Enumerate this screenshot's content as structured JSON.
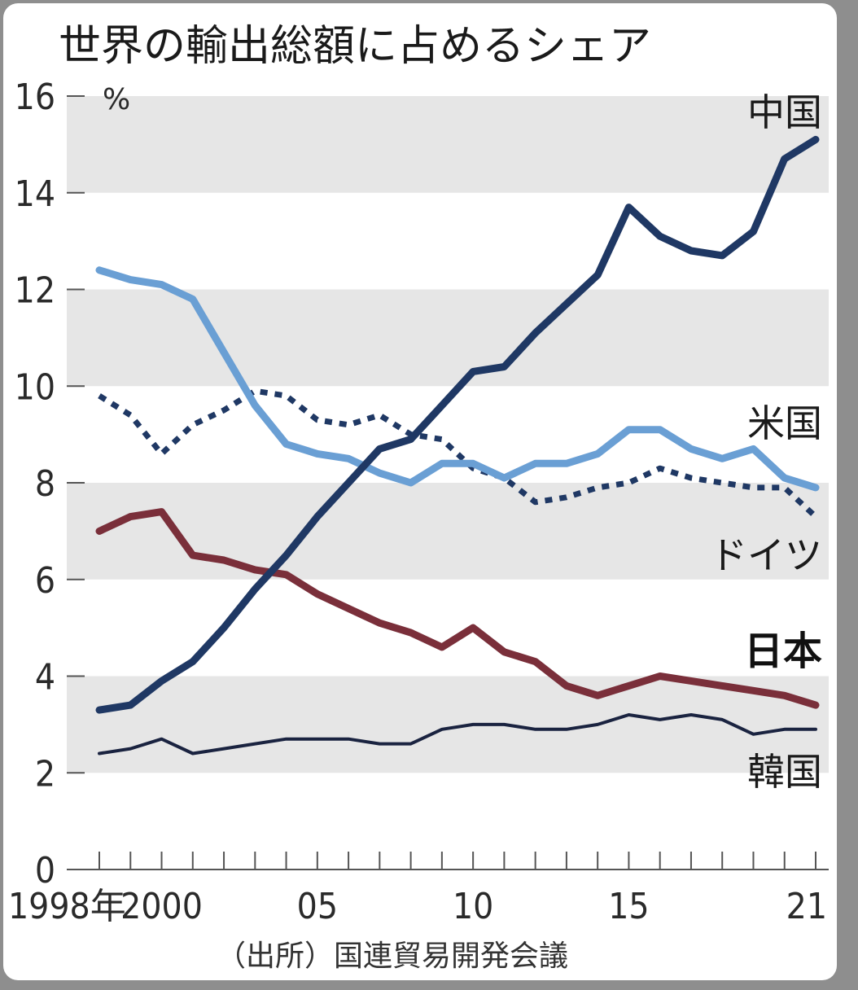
{
  "chart_data": {
    "type": "line",
    "title": "世界の輸出総額に占めるシェア",
    "ylabel": "%",
    "ylim": [
      0,
      16
    ],
    "yticks": [
      0,
      2,
      4,
      6,
      8,
      10,
      12,
      14,
      16
    ],
    "xlim": [
      1998,
      2021
    ],
    "x": [
      1998,
      1999,
      2000,
      2001,
      2002,
      2003,
      2004,
      2005,
      2006,
      2007,
      2008,
      2009,
      2010,
      2011,
      2012,
      2013,
      2014,
      2015,
      2016,
      2017,
      2018,
      2019,
      2020,
      2021
    ],
    "xticks": [
      {
        "x": 1998,
        "label": "1998年"
      },
      {
        "x": 2000,
        "label": "2000"
      },
      {
        "x": 2005,
        "label": "05"
      },
      {
        "x": 2010,
        "label": "10"
      },
      {
        "x": 2015,
        "label": "15"
      },
      {
        "x": 2021,
        "label": "21"
      }
    ],
    "series": [
      {
        "name": "中国",
        "color": "#1f3864",
        "style": "solid",
        "values": [
          3.3,
          3.4,
          3.9,
          4.3,
          5.0,
          5.8,
          6.5,
          7.3,
          8.0,
          8.7,
          8.9,
          9.6,
          10.3,
          10.4,
          11.1,
          11.7,
          12.3,
          13.7,
          13.1,
          12.8,
          12.7,
          13.2,
          14.7,
          15.1
        ]
      },
      {
        "name": "米国",
        "color": "#6a9fd4",
        "style": "solid",
        "values": [
          12.4,
          12.2,
          12.1,
          11.8,
          10.7,
          9.6,
          8.8,
          8.6,
          8.5,
          8.2,
          8.0,
          8.4,
          8.4,
          8.1,
          8.4,
          8.4,
          8.6,
          9.1,
          9.1,
          8.7,
          8.5,
          8.7,
          8.1,
          7.9
        ]
      },
      {
        "name": "ドイツ",
        "color": "#1f3864",
        "style": "dotted",
        "values": [
          9.8,
          9.4,
          8.6,
          9.2,
          9.5,
          9.9,
          9.8,
          9.3,
          9.2,
          9.4,
          9.0,
          8.9,
          8.3,
          8.1,
          7.6,
          7.7,
          7.9,
          8.0,
          8.3,
          8.1,
          8.0,
          7.9,
          7.9,
          7.3
        ]
      },
      {
        "name": "日本",
        "color": "#7a2f3a",
        "style": "solid",
        "values": [
          7.0,
          7.3,
          7.4,
          6.5,
          6.4,
          6.2,
          6.1,
          5.7,
          5.4,
          5.1,
          4.9,
          4.6,
          5.0,
          4.5,
          4.3,
          3.8,
          3.6,
          3.8,
          4.0,
          3.9,
          3.8,
          3.7,
          3.6,
          3.4
        ]
      },
      {
        "name": "韓国",
        "color": "#1a2340",
        "style": "solid-thin",
        "values": [
          2.4,
          2.5,
          2.7,
          2.4,
          2.5,
          2.6,
          2.7,
          2.7,
          2.7,
          2.6,
          2.6,
          2.9,
          3.0,
          3.0,
          2.9,
          2.9,
          3.0,
          3.2,
          3.1,
          3.2,
          3.1,
          2.8,
          2.9,
          2.9
        ]
      }
    ],
    "source": "（出所）国連貿易開発会議"
  }
}
